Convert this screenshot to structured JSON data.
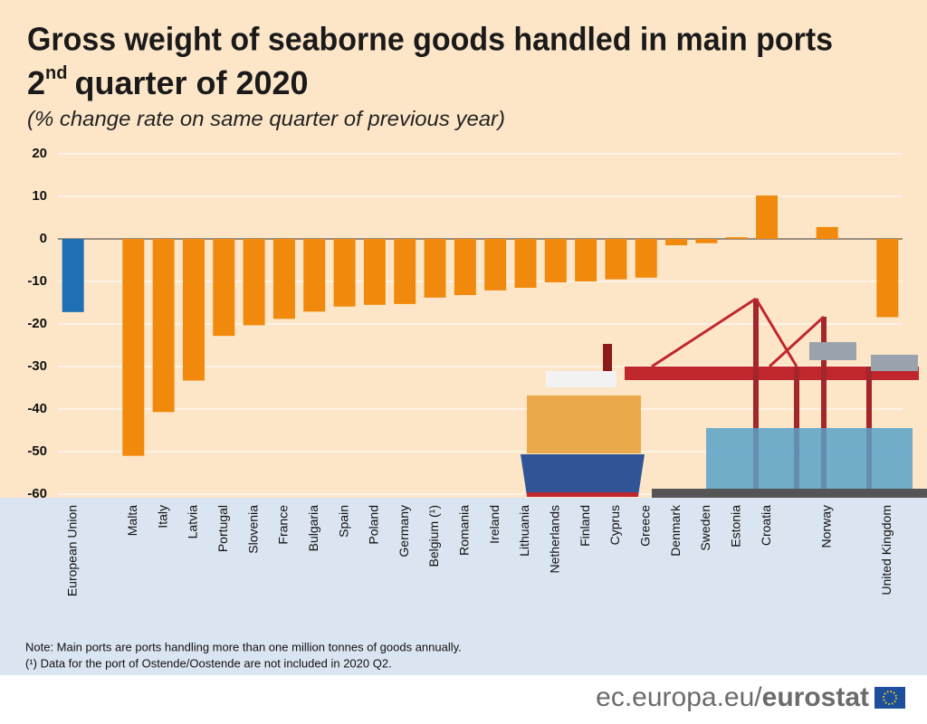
{
  "chart_data": {
    "type": "bar",
    "title": "Gross weight of seaborne goods handled in main ports",
    "title_2": [
      "2",
      "nd",
      "quarter of 2020"
    ],
    "subtitle": "(% change rate on same quarter of previous year)",
    "categories": [
      "European Union",
      null,
      "Malta",
      "Italy",
      "Latvia",
      "Portugal",
      "Slovenia",
      "France",
      "Bulgaria",
      "Spain",
      "Poland",
      "Germany",
      "Belgium (¹)",
      "Romania",
      "Ireland",
      "Lithuania",
      "Netherlands",
      "Finland",
      "Cyprus",
      "Greece",
      "Denmark",
      "Sweden",
      "Estonia",
      "Croatia",
      null,
      "Norway",
      null,
      "United Kingdom"
    ],
    "values": [
      -17.2,
      null,
      -51.0,
      -40.7,
      -33.3,
      -22.8,
      -20.3,
      -18.8,
      -17.1,
      -15.9,
      -15.5,
      -15.3,
      -13.8,
      -13.2,
      -12.1,
      -11.5,
      -10.2,
      -10.0,
      -9.5,
      -9.1,
      -1.5,
      -1.0,
      0.4,
      10.2,
      null,
      2.8,
      null,
      -18.4
    ],
    "colors": [
      "#1f6fb5",
      null,
      "#f0890c",
      "#f0890c",
      "#f0890c",
      "#f0890c",
      "#f0890c",
      "#f0890c",
      "#f0890c",
      "#f0890c",
      "#f0890c",
      "#f0890c",
      "#f0890c",
      "#f0890c",
      "#f0890c",
      "#f0890c",
      "#f0890c",
      "#f0890c",
      "#f0890c",
      "#f0890c",
      "#f0890c",
      "#f0890c",
      "#f0890c",
      "#f0890c",
      null,
      "#f0890c",
      null,
      "#f0890c"
    ],
    "ylim": [
      -60,
      20
    ],
    "yticks": [
      20,
      10,
      0,
      -10,
      -20,
      -30,
      -40,
      -50,
      -60
    ],
    "grid": true,
    "notes": [
      "Note: Main ports are ports handling more than one million tonnes of goods annually.",
      "(¹) Data for the port of Ostende/Oostende are not included in 2020 Q2."
    ],
    "source": [
      "ec.europa.eu/",
      "eurostat"
    ]
  }
}
